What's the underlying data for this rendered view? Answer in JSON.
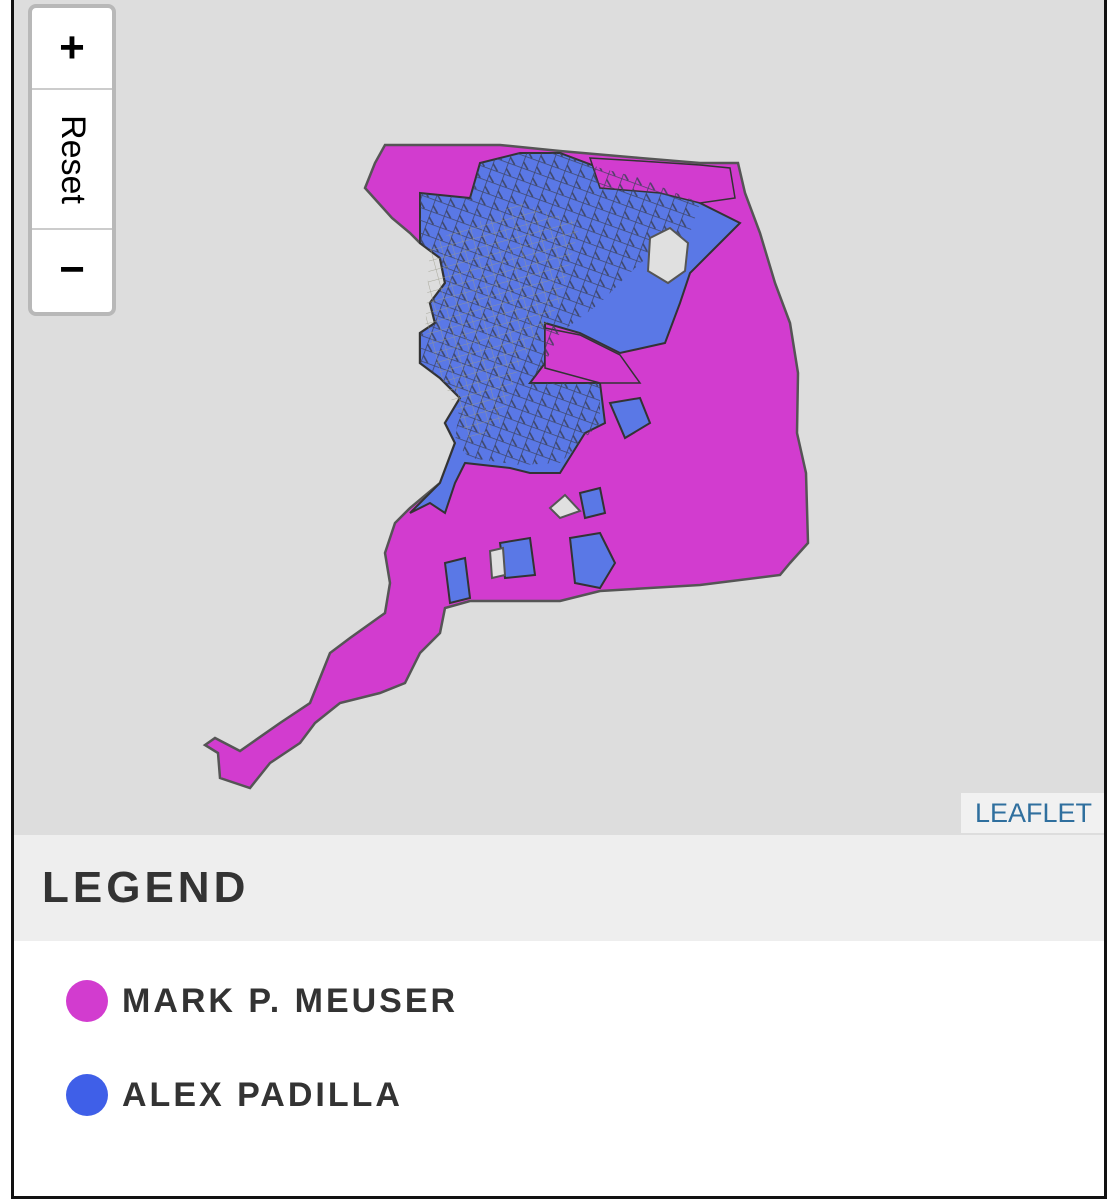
{
  "map": {
    "zoom_in_label": "+",
    "reset_label": "Reset",
    "zoom_out_label": "−",
    "attribution": "LEAFLET",
    "colors": {
      "background": "#dddddd",
      "no_data": "#e0e0e0"
    }
  },
  "legend": {
    "title": "LEGEND",
    "items": [
      {
        "label": "MARK P. MEUSER",
        "color": "#d23ccf"
      },
      {
        "label": "ALEX PADILLA",
        "color": "#3f5fe8"
      }
    ]
  }
}
